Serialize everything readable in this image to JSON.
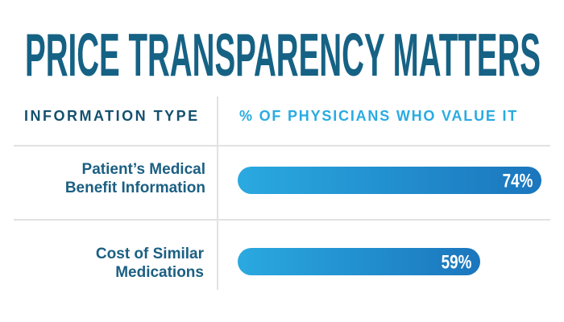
{
  "title": "PRICE TRANSPARENCY MATTERS",
  "columns": {
    "left_header": "INFORMATION TYPE",
    "right_header": "% OF PHYSICIANS WHO VALUE IT"
  },
  "rows": [
    {
      "label": "Patient’s Medical Benefit Information",
      "label_lines": [
        "Patient’s Medical",
        "Benefit Information"
      ],
      "value": 74,
      "value_label": "74%"
    },
    {
      "label": "Cost of Similar Medications",
      "label_lines": [
        "Cost of Similar",
        "Medications"
      ],
      "value": 59,
      "value_label": "59%"
    }
  ],
  "colors": {
    "title": "#166285",
    "header-left": "#14506E",
    "accent-blue": "#29ABE2",
    "label": "#1B5F82",
    "bar-start": "#2AA9E0",
    "bar-end": "#1B76BD",
    "bar-text": "#FFFFFF",
    "divider": "#E2E2E2"
  },
  "chart_data": {
    "type": "bar",
    "orientation": "horizontal",
    "title": "PRICE TRANSPARENCY MATTERS",
    "categories": [
      "Patient’s Medical Benefit Information",
      "Cost of Similar Medications"
    ],
    "values": [
      74,
      59
    ],
    "value_unit": "%",
    "data_labels": [
      "74%",
      "59%"
    ],
    "xlabel": "% OF PHYSICIANS WHO VALUE IT",
    "ylabel": "INFORMATION TYPE",
    "xlim": [
      0,
      100
    ],
    "grid": false,
    "legend": false
  }
}
